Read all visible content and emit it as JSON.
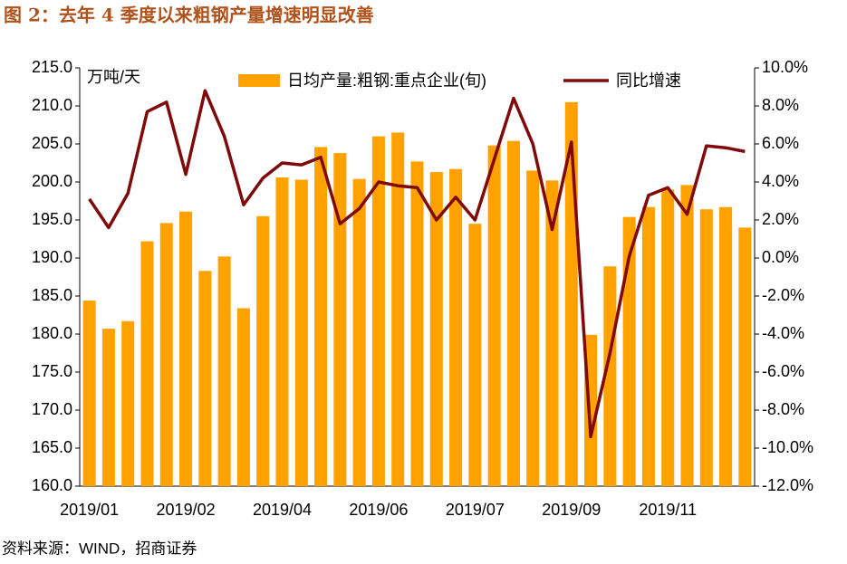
{
  "title": "图 2：去年 4 季度以来粗钢产量增速明显改善",
  "source": "资料来源：WIND，招商证券",
  "chart_data": {
    "type": "bar_line",
    "y_unit_label": "万吨/天",
    "categories": [
      "2019/01",
      null,
      null,
      null,
      null,
      "2019/02",
      null,
      null,
      null,
      null,
      "2019/04",
      null,
      null,
      null,
      null,
      "2019/06",
      null,
      null,
      null,
      null,
      "2019/07",
      null,
      null,
      null,
      null,
      "2019/09",
      null,
      null,
      null,
      null,
      "2019/11",
      null,
      null,
      null,
      null
    ],
    "series": [
      {
        "name": "日均产量:粗钢:重点企业(旬)",
        "type": "bar",
        "color": "#ffa200",
        "values": [
          184.4,
          180.7,
          181.7,
          192.2,
          194.6,
          196.1,
          188.3,
          190.2,
          183.4,
          195.5,
          200.6,
          200.3,
          204.6,
          203.8,
          200.4,
          206.0,
          206.5,
          202.7,
          201.3,
          201.7,
          194.5,
          204.8,
          205.4,
          201.5,
          200.2,
          210.5,
          179.9,
          188.9,
          195.4,
          196.7,
          199.0,
          199.6,
          196.4,
          196.7,
          194.0
        ]
      },
      {
        "name": "同比增速",
        "type": "line",
        "color": "#7f0a0a",
        "axis": "y2",
        "values": [
          3.1,
          1.6,
          3.4,
          7.7,
          8.2,
          4.4,
          8.8,
          6.4,
          2.8,
          4.2,
          5.0,
          4.9,
          5.3,
          1.8,
          2.6,
          4.0,
          3.8,
          3.7,
          2.0,
          3.2,
          2.0,
          5.2,
          8.4,
          6.0,
          1.5,
          6.1,
          -9.4,
          -5.0,
          0.1,
          3.3,
          3.7,
          2.3,
          5.9,
          5.8,
          5.6
        ]
      }
    ],
    "ylim": [
      160,
      215
    ],
    "yticks": [
      {
        "value": 160,
        "label": "160.0"
      },
      {
        "value": 165,
        "label": "165.0"
      },
      {
        "value": 170,
        "label": "170.0"
      },
      {
        "value": 175,
        "label": "175.0"
      },
      {
        "value": 180,
        "label": "180.0"
      },
      {
        "value": 185,
        "label": "185.0"
      },
      {
        "value": 190,
        "label": "190.0"
      },
      {
        "value": 195,
        "label": "195.0"
      },
      {
        "value": 200,
        "label": "200.0"
      },
      {
        "value": 205,
        "label": "205.0"
      },
      {
        "value": 210,
        "label": "210.0"
      },
      {
        "value": 215,
        "label": "215.0"
      }
    ],
    "y2lim": [
      -12,
      10
    ],
    "y2ticks": [
      {
        "value": -12,
        "label": "-12.0%"
      },
      {
        "value": -10,
        "label": "-10.0%"
      },
      {
        "value": -8,
        "label": "-8.0%"
      },
      {
        "value": -6,
        "label": "-6.0%"
      },
      {
        "value": -4,
        "label": "-4.0%"
      },
      {
        "value": -2,
        "label": "-2.0%"
      },
      {
        "value": 0,
        "label": "0.0%"
      },
      {
        "value": 2,
        "label": "2.0%"
      },
      {
        "value": 4,
        "label": "4.0%"
      },
      {
        "value": 6,
        "label": "6.0%"
      },
      {
        "value": 8,
        "label": "8.0%"
      },
      {
        "value": 10,
        "label": "10.0%"
      }
    ],
    "legend": "top"
  }
}
